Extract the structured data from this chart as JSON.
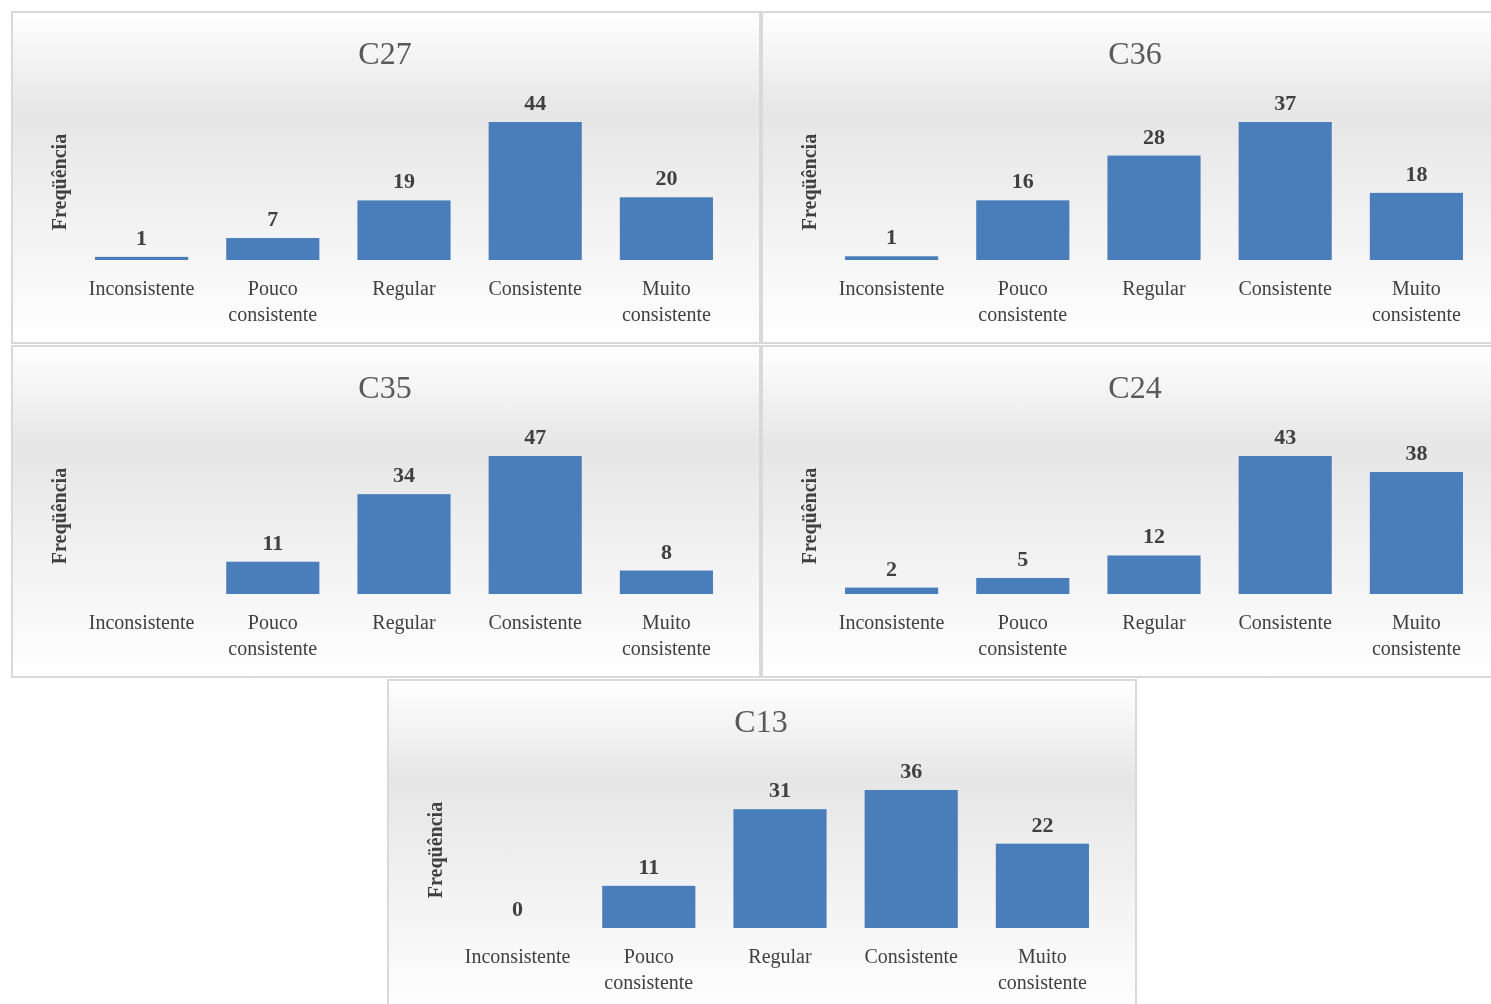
{
  "chart_data": [
    {
      "type": "bar",
      "title": "C27",
      "ylabel": "Freqüência",
      "categories": [
        "Inconsistente",
        "Pouco consistente",
        "Regular",
        "Consistente",
        "Muito consistente"
      ],
      "values": [
        1,
        7,
        19,
        44,
        20
      ],
      "color": "#4a7ebb",
      "data_labels": true,
      "tick_labels": "x"
    },
    {
      "type": "bar",
      "title": "C36",
      "ylabel": "Freqüência",
      "categories": [
        "Inconsistente",
        "Pouco consistente",
        "Regular",
        "Consistente",
        "Muito consistente"
      ],
      "values": [
        1,
        16,
        28,
        37,
        18
      ],
      "color": "#4a7ebb",
      "data_labels": true,
      "tick_labels": "x"
    },
    {
      "type": "bar",
      "title": "C35",
      "ylabel": "Freqüência",
      "categories": [
        "Inconsistente",
        "Pouco consistente",
        "Regular",
        "Consistente",
        "Muito consistente"
      ],
      "values": [
        null,
        11,
        34,
        47,
        8
      ],
      "color": "#4a7ebb",
      "data_labels": true,
      "tick_labels": "x"
    },
    {
      "type": "bar",
      "title": "C24",
      "ylabel": "Freqüência",
      "categories": [
        "Inconsistente",
        "Pouco consistente",
        "Regular",
        "Consistente",
        "Muito consistente"
      ],
      "values": [
        2,
        5,
        12,
        43,
        38
      ],
      "color": "#4a7ebb",
      "data_labels": true,
      "tick_labels": "x"
    },
    {
      "type": "bar",
      "title": "C13",
      "ylabel": "Freqüência",
      "categories": [
        "Inconsistente",
        "Pouco consistente",
        "Regular",
        "Consistente",
        "Muito consistente"
      ],
      "values": [
        0,
        11,
        31,
        36,
        22
      ],
      "color": "#4a7ebb",
      "data_labels": true,
      "tick_labels": "x"
    }
  ]
}
